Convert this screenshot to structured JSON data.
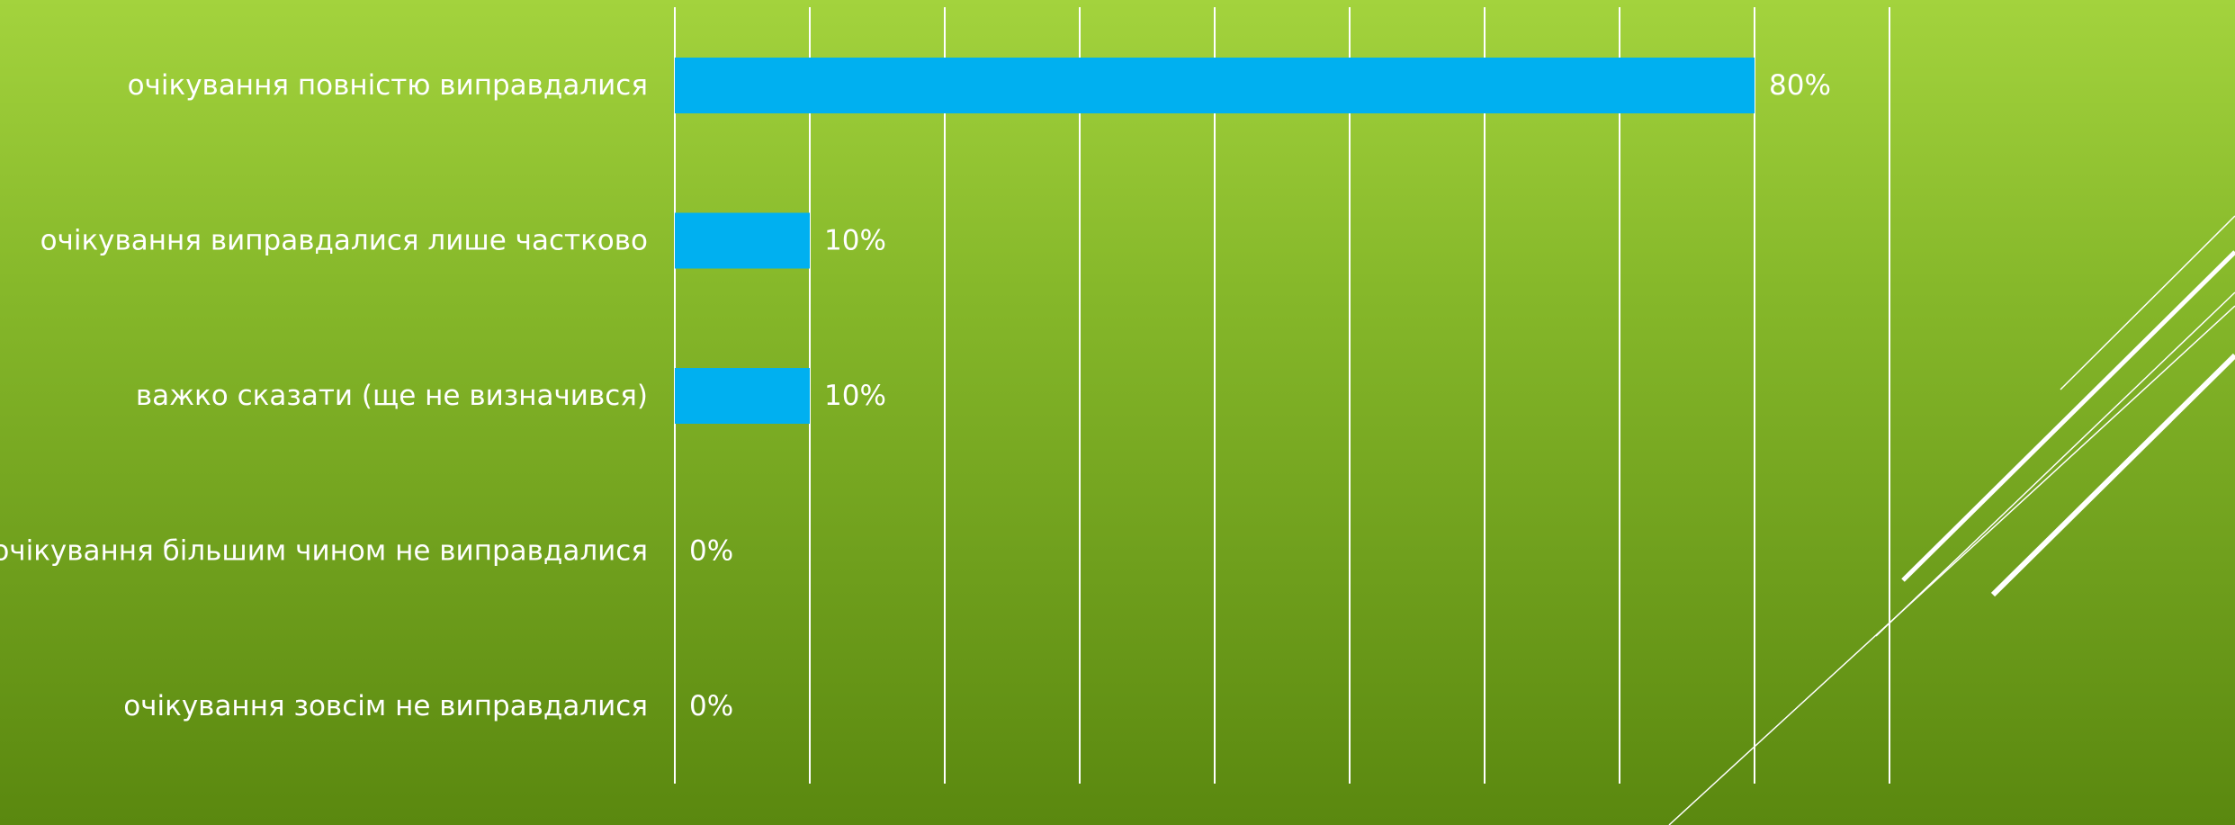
{
  "chart_data": {
    "type": "bar",
    "orientation": "horizontal",
    "categories": [
      "очікування повністю виправдалися",
      "очікування виправдалися лише частково",
      "важко сказати (ще не визначився)",
      "очікування більшим чином не виправдалися",
      "очікування зовсім не виправдалися"
    ],
    "values": [
      80,
      10,
      10,
      0,
      0
    ],
    "value_labels": [
      "80%",
      "10%",
      "10%",
      "0%",
      "0%"
    ],
    "unit": "%",
    "xlim": [
      0,
      90
    ],
    "grid_step": 10,
    "grid": true,
    "legend": "none",
    "title": "",
    "xlabel": "",
    "ylabel": ""
  },
  "colors": {
    "bar": "#00b0f0",
    "gridline": "#ffffff",
    "text": "#ffffff",
    "background_top": "#a3d33d",
    "background_bottom": "#5a880f"
  }
}
